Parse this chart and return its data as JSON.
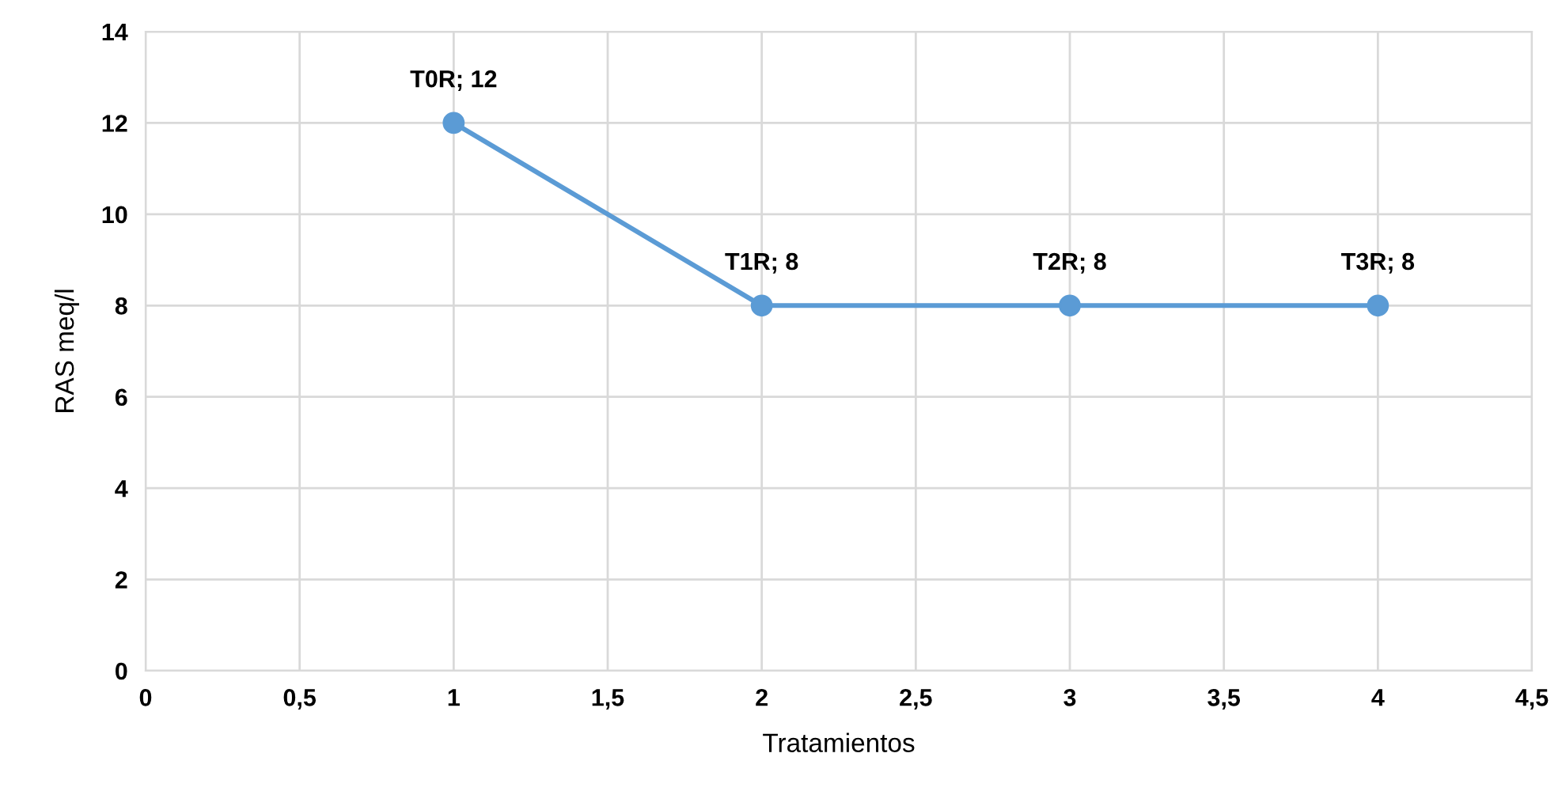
{
  "chart_data": {
    "type": "line",
    "xlabel": "Tratamientos",
    "ylabel": "RAS meq/l",
    "series": [
      {
        "color": "#5b9bd5",
        "x": [
          1,
          2,
          3,
          4
        ],
        "values": [
          12,
          8,
          8,
          8
        ]
      }
    ],
    "xlim": [
      0,
      4.5
    ],
    "xticks": [
      0,
      {
        "value": 0.5,
        "label": "0,5"
      },
      1,
      {
        "value": 1.5,
        "label": "1,5"
      },
      2,
      {
        "value": 2.5,
        "label": "2,5"
      },
      3,
      {
        "value": 3.5,
        "label": "3,5"
      },
      4,
      {
        "value": 4.5,
        "label": "4,5"
      }
    ],
    "ylim": [
      0,
      14
    ],
    "yticks": [
      0,
      2,
      4,
      6,
      8,
      10,
      12,
      14
    ],
    "grid": true,
    "marker": "circle",
    "line_style": "solid",
    "legend": false,
    "annotations": [
      {
        "text": "T0R; 12",
        "x": 1,
        "y": 12
      },
      {
        "text": "T1R; 8",
        "x": 2,
        "y": 8
      },
      {
        "text": "T2R; 8",
        "x": 3,
        "y": 8
      },
      {
        "text": "T3R; 8",
        "x": 4,
        "y": 8
      }
    ]
  }
}
